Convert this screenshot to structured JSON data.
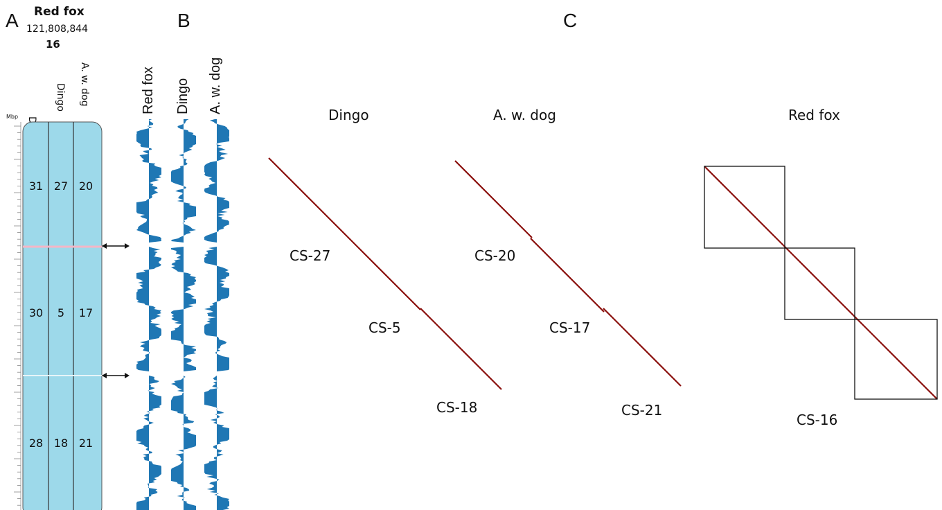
{
  "panels": {
    "a": "A",
    "b": "B",
    "c": "C"
  },
  "karyotype": {
    "species": "Red fox",
    "length": "121,808,844",
    "chromosome": "16",
    "unit": "Mbp",
    "columns": [
      "Dog",
      "Dingo",
      "A. w. dog"
    ],
    "blocks": [
      {
        "dog": "31",
        "dingo": "27",
        "aw_dog": "20"
      },
      {
        "dog": "30",
        "dingo": "5",
        "aw_dog": "17"
      },
      {
        "dog": "28",
        "dingo": "18",
        "aw_dog": "21"
      }
    ],
    "fill_color": "#9dd9ea"
  },
  "tracks": {
    "labels": [
      "Red fox",
      "Dingo",
      "A. w. dog"
    ],
    "color": "#1f77b4"
  },
  "hic": {
    "groups": [
      {
        "title": "Dingo",
        "blocks": [
          "CS-27",
          "CS-5",
          "CS-18"
        ]
      },
      {
        "title": "A. w. dog",
        "blocks": [
          "CS-20",
          "CS-17",
          "CS-21"
        ]
      },
      {
        "title": "Red fox",
        "blocks": [
          "CS-16"
        ]
      }
    ],
    "color_high": "#c0221a",
    "color_low": "#fbe3de"
  }
}
